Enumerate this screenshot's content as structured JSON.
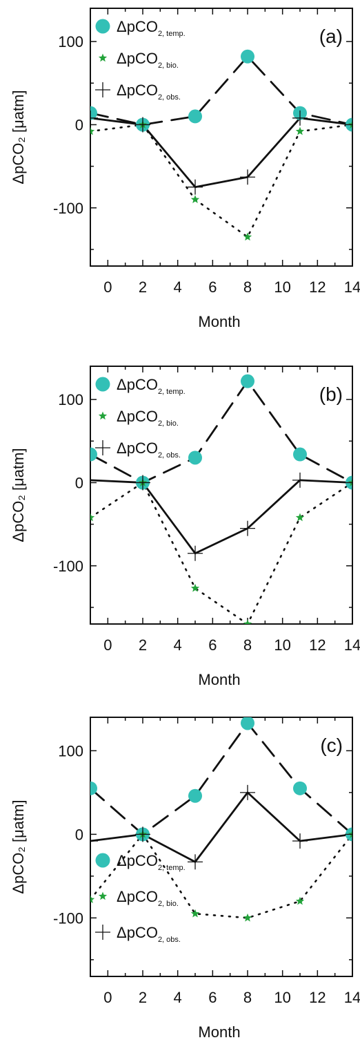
{
  "chart_data": [
    {
      "type": "line",
      "panel_label": "(a)",
      "xlabel": "Month",
      "ylabel": "ΔpCO₂ [μatm]",
      "xlim": [
        -1,
        14
      ],
      "ylim": [
        -170,
        140
      ],
      "x_ticks": [
        0,
        2,
        4,
        6,
        8,
        10,
        12,
        14
      ],
      "y_ticks": [
        100,
        0,
        -100
      ],
      "x": [
        -1,
        2,
        5,
        8,
        11,
        14
      ],
      "legend_placement": "top-left",
      "series": [
        {
          "key": "temp",
          "label_main": "ΔpCO",
          "label_sub": "2, temp.",
          "marker": "circle",
          "line": "dashed",
          "values": [
            14,
            0,
            10,
            82,
            14,
            0
          ]
        },
        {
          "key": "bio",
          "label_main": "ΔpCO",
          "label_sub": "2, bio.",
          "marker": "star",
          "line": "dotted",
          "values": [
            -8,
            0,
            -90,
            -135,
            -8,
            0
          ]
        },
        {
          "key": "obs",
          "label_main": "ΔpCO",
          "label_sub": "2, obs.",
          "marker": "plus",
          "line": "solid",
          "values": [
            8,
            0,
            -75,
            -63,
            8,
            0
          ]
        }
      ]
    },
    {
      "type": "line",
      "panel_label": "(b)",
      "xlabel": "Month",
      "ylabel": "ΔpCO₂ [μatm]",
      "xlim": [
        -1,
        14
      ],
      "ylim": [
        -170,
        140
      ],
      "x_ticks": [
        0,
        2,
        4,
        6,
        8,
        10,
        12,
        14
      ],
      "y_ticks": [
        100,
        0,
        -100
      ],
      "x": [
        -1,
        2,
        5,
        8,
        11,
        14
      ],
      "legend_placement": "top-left",
      "series": [
        {
          "key": "temp",
          "label_main": "ΔpCO",
          "label_sub": "2, temp.",
          "marker": "circle",
          "line": "dashed",
          "values": [
            34,
            0,
            30,
            122,
            34,
            0
          ]
        },
        {
          "key": "bio",
          "label_main": "ΔpCO",
          "label_sub": "2, bio.",
          "marker": "star",
          "line": "dotted",
          "values": [
            -42,
            0,
            -127,
            -170,
            -42,
            0
          ]
        },
        {
          "key": "obs",
          "label_main": "ΔpCO",
          "label_sub": "2, obs.",
          "marker": "plus",
          "line": "solid",
          "values": [
            3,
            0,
            -85,
            -55,
            3,
            0
          ]
        }
      ]
    },
    {
      "type": "line",
      "panel_label": "(c)",
      "xlabel": "Month",
      "ylabel": "ΔpCO₂ [μatm]",
      "xlim": [
        -1,
        14
      ],
      "ylim": [
        -170,
        140
      ],
      "x_ticks": [
        0,
        2,
        4,
        6,
        8,
        10,
        12,
        14
      ],
      "y_ticks": [
        100,
        0,
        -100
      ],
      "x": [
        -1,
        2,
        5,
        8,
        11,
        14
      ],
      "legend_placement": "bottom-left",
      "series": [
        {
          "key": "temp",
          "label_main": "ΔpCO",
          "label_sub": "2, temp.",
          "marker": "circle",
          "line": "dashed",
          "values": [
            55,
            0,
            46,
            133,
            55,
            0
          ]
        },
        {
          "key": "bio",
          "label_main": "ΔpCO",
          "label_sub": "2, bio.",
          "marker": "star",
          "line": "dotted",
          "values": [
            -78,
            0,
            -95,
            -100,
            -80,
            0
          ]
        },
        {
          "key": "obs",
          "label_main": "ΔpCO",
          "label_sub": "2, obs.",
          "marker": "plus",
          "line": "solid",
          "values": [
            -8,
            0,
            -33,
            50,
            -8,
            0
          ]
        }
      ]
    }
  ],
  "colors": {
    "temp_marker": "#33c0b6",
    "bio_marker": "#22a33a",
    "line": "#111111",
    "axes": "#111111"
  }
}
